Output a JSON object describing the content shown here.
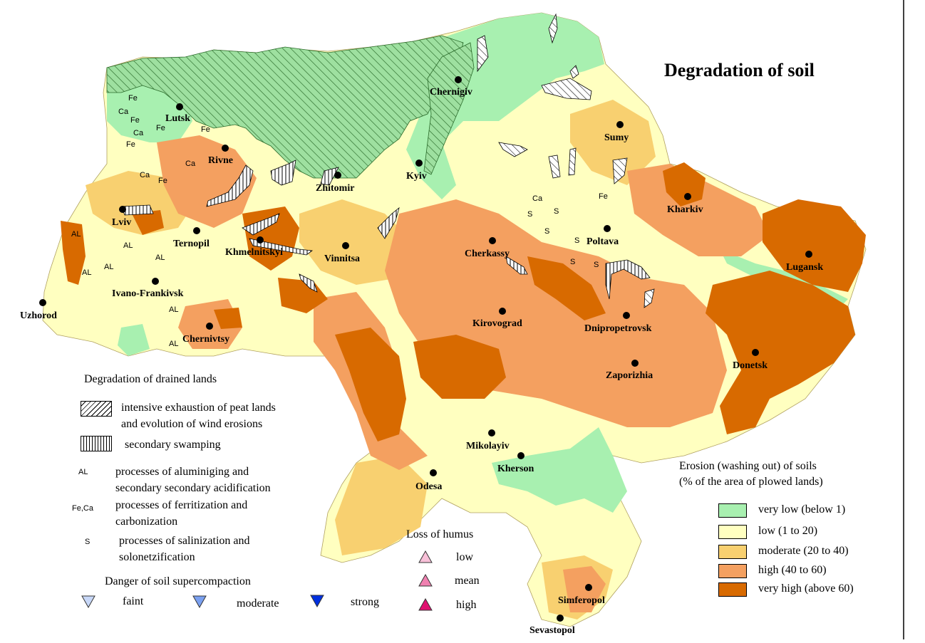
{
  "title": "Degradation of soil",
  "colors": {
    "very_low": "#a8f0b0",
    "low": "#ffffc0",
    "moderate": "#f8d070",
    "high": "#f4a060",
    "very_high": "#d86a00",
    "peat": "#9ee0a0",
    "river": "#a8f0b0"
  },
  "cities": [
    {
      "name": "Lutsk"
    },
    {
      "name": "Rivne"
    },
    {
      "name": "Zhitomir"
    },
    {
      "name": "Chernigiv"
    },
    {
      "name": "Kyiv"
    },
    {
      "name": "Sumy"
    },
    {
      "name": "Kharkiv"
    },
    {
      "name": "Lviv"
    },
    {
      "name": "Ternopil"
    },
    {
      "name": "Khmelnitskyi"
    },
    {
      "name": "Vinnitsa"
    },
    {
      "name": "Cherkassy"
    },
    {
      "name": "Poltava"
    },
    {
      "name": "Lugansk"
    },
    {
      "name": "Ivano-Frankivsk"
    },
    {
      "name": "Uzhorod"
    },
    {
      "name": "Chernivtsy"
    },
    {
      "name": "Kirovograd"
    },
    {
      "name": "Dnipropetrovsk"
    },
    {
      "name": "Donetsk"
    },
    {
      "name": "Zaporizhia"
    },
    {
      "name": "Mikolayiv"
    },
    {
      "name": "Kherson"
    },
    {
      "name": "Odesa"
    },
    {
      "name": "Simferopol"
    },
    {
      "name": "Sevastopol"
    }
  ],
  "map_codes": {
    "fe": "Fe",
    "ca": "Ca",
    "al": "AL",
    "s": "S"
  },
  "drained": {
    "heading": "Degradation of drained lands",
    "peat_line1": "intensive exhaustion of peat lands",
    "peat_line2": "and evolution of wind erosions",
    "swamping": "secondary swamping",
    "al_code": "AL",
    "al_line1": "processes of aluminiging and",
    "al_line2": "secondary secondary acidification",
    "feca_code": "Fe,Ca",
    "feca_line1": "processes of ferritization and",
    "feca_line2": "carbonization",
    "s_code": "S",
    "s_line1": "processes of salinization and",
    "s_line2": "solonetzification"
  },
  "compaction": {
    "heading": "Danger of soil supercompaction",
    "faint": "faint",
    "moderate": "moderate",
    "strong": "strong",
    "colors": {
      "faint": "#c8d8f8",
      "moderate": "#7aa0f0",
      "strong": "#0030e0"
    }
  },
  "humus": {
    "heading": "Loss of humus",
    "low": "low",
    "mean": "mean",
    "high": "high",
    "colors": {
      "low": "#f8c0d8",
      "mean": "#f080b0",
      "high": "#e01070"
    }
  },
  "erosion": {
    "heading1": "Erosion (washing out) of soils",
    "heading2": "(% of the area of plowed lands)",
    "classes": [
      {
        "label": "very low (below 1)",
        "color": "#a8f0b0"
      },
      {
        "label": "low (1 to 20)",
        "color": "#ffffc0"
      },
      {
        "label": "moderate (20 to 40)",
        "color": "#f8d070"
      },
      {
        "label": "high (40 to 60)",
        "color": "#f4a060"
      },
      {
        "label": "very high (above 60)",
        "color": "#d86a00"
      }
    ]
  }
}
